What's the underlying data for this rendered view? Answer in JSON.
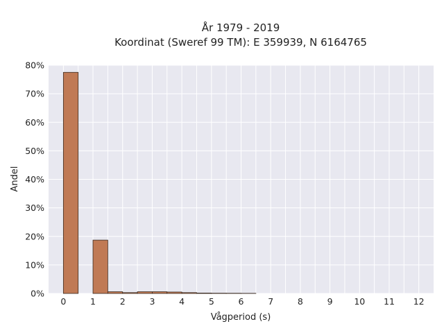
{
  "chart_data": {
    "type": "bar",
    "title": "År 1979 - 2019",
    "subtitle": "Koordinat (Sweref 99 TM): E 359939, N 6164765",
    "xlabel": "Vågperiod (s)",
    "ylabel": "Andel",
    "bin_width": 0.5,
    "x": [
      0,
      1,
      1.5,
      2,
      2.5,
      3,
      3.5,
      4,
      4.5,
      5,
      5.5,
      6
    ],
    "values": [
      77.5,
      18.7,
      0.6,
      0.3,
      0.6,
      0.6,
      0.5,
      0.3,
      0.15,
      0.1,
      0.08,
      0.05
    ],
    "xlim": [
      -0.5,
      12.5
    ],
    "ylim": [
      0,
      80
    ],
    "x_ticks": [
      0,
      1,
      2,
      3,
      4,
      5,
      6,
      7,
      8,
      9,
      10,
      11,
      12
    ],
    "y_ticks": [
      0,
      10,
      20,
      30,
      40,
      50,
      60,
      70,
      80
    ],
    "y_tick_suffix": "%",
    "grid": true,
    "colors": {
      "bar_fill": "#c07a55",
      "bar_edge": "#3a2a20",
      "plot_bg": "#e8e8f0",
      "grid": "#ffffff"
    }
  }
}
